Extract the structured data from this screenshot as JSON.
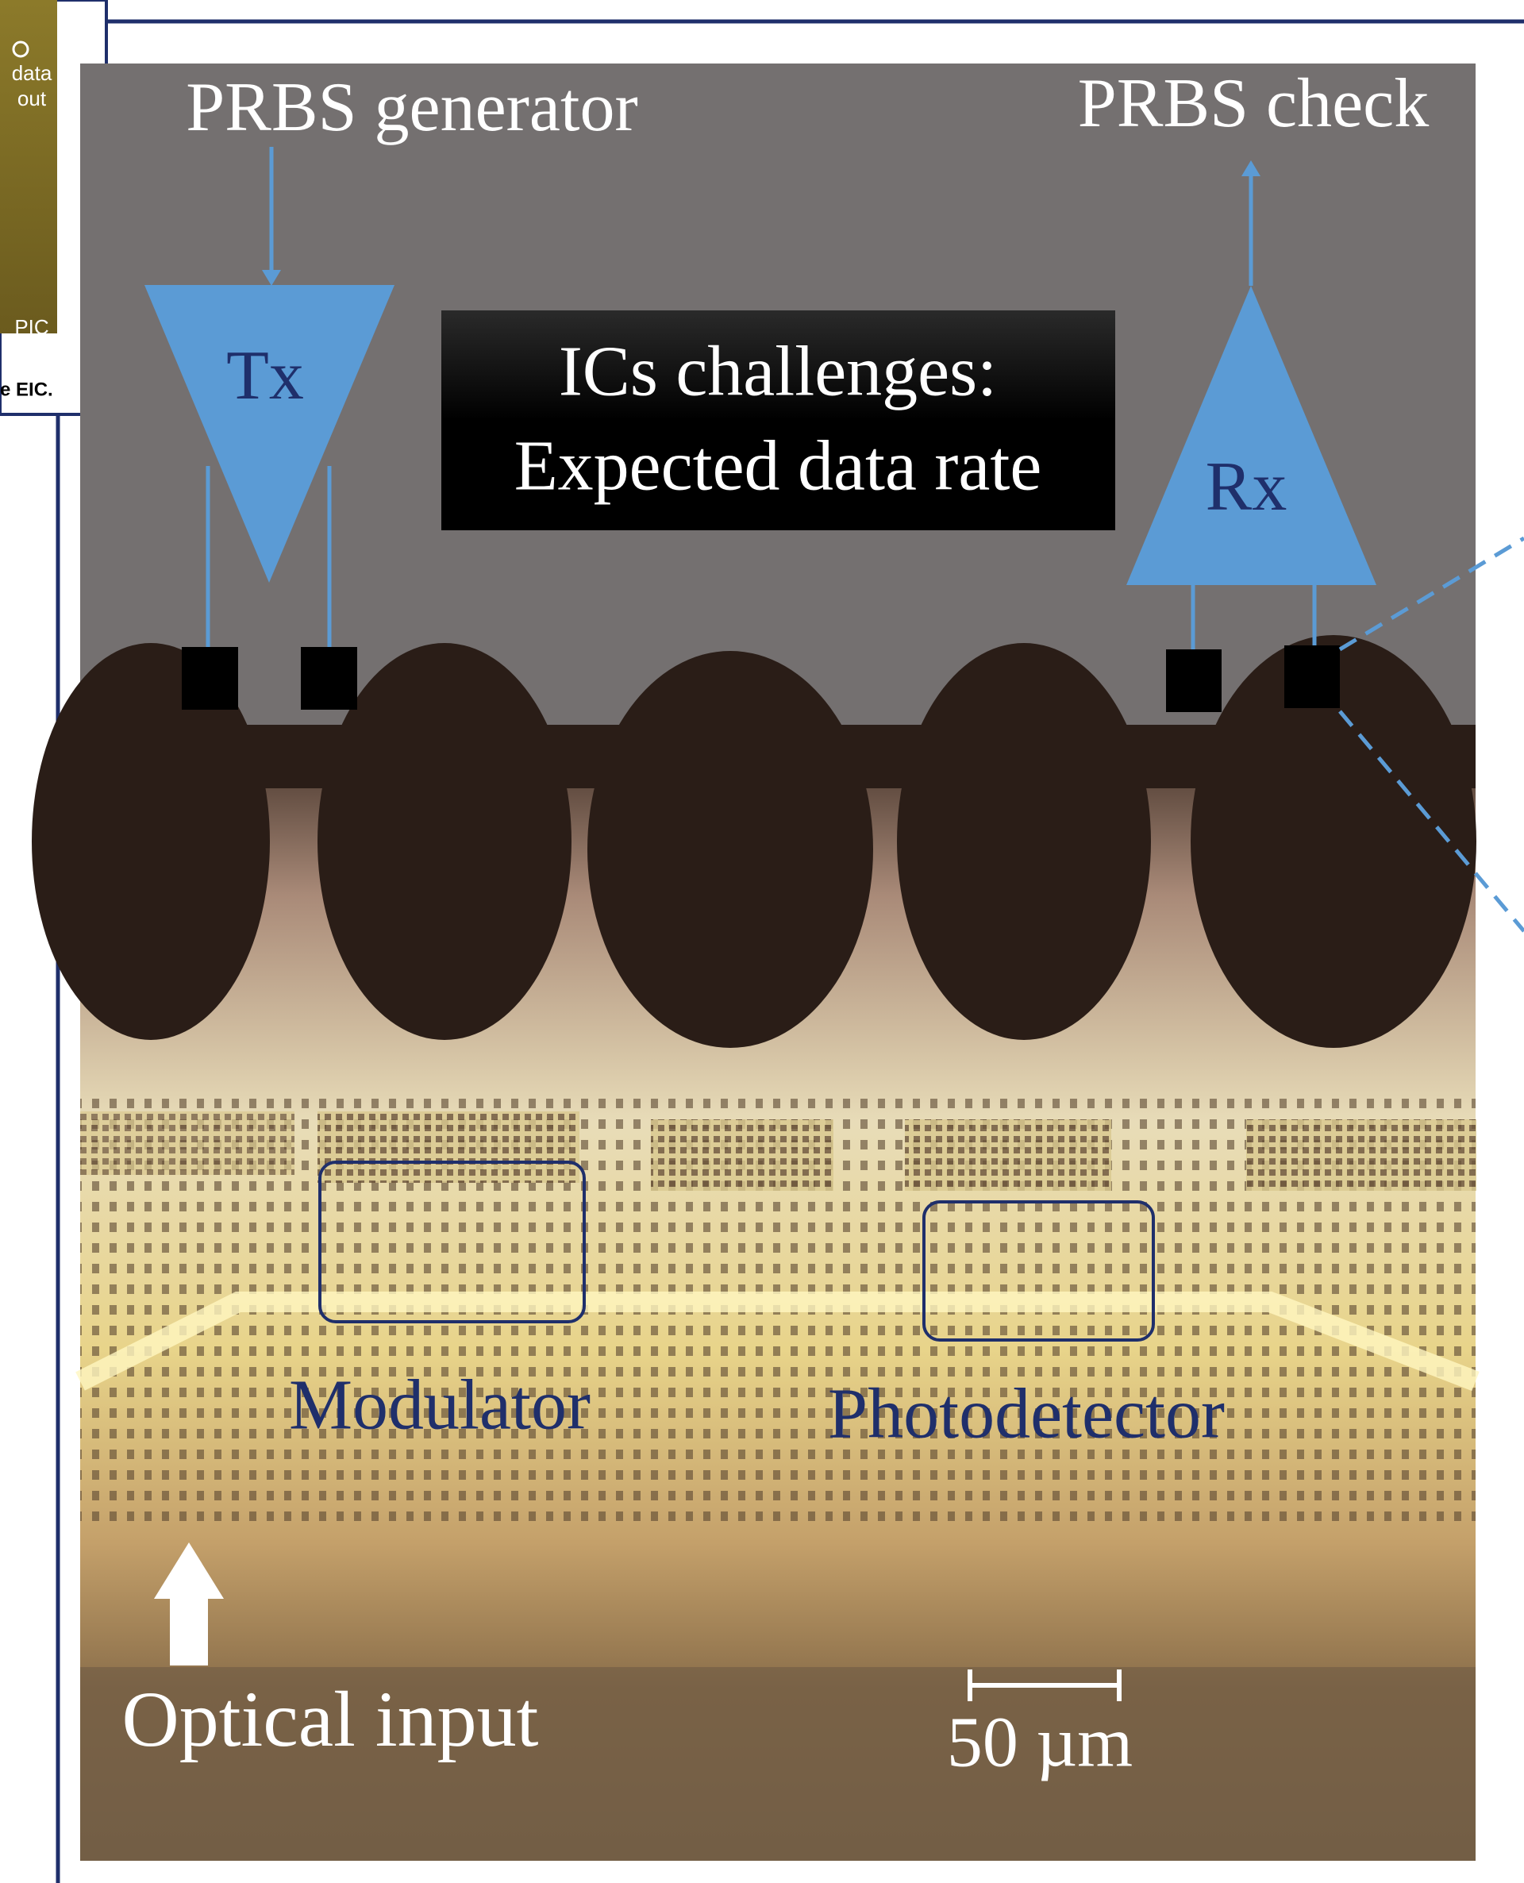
{
  "inset": {
    "data_label": "data",
    "out_label": "out",
    "pic_label": "PIC",
    "caption_fragment": "e EIC."
  },
  "transmitter": {
    "source": "PRBS generator",
    "label": "Tx"
  },
  "receiver": {
    "sink": "PRBS check",
    "label": "Rx"
  },
  "callout": {
    "line1": "ICs challenges:",
    "line2": "Expected data rate"
  },
  "photo": {
    "modulator": "Modulator",
    "photodetector": "Photodetector",
    "optical_input": "Optical input",
    "scale_bar": "50 µm"
  }
}
